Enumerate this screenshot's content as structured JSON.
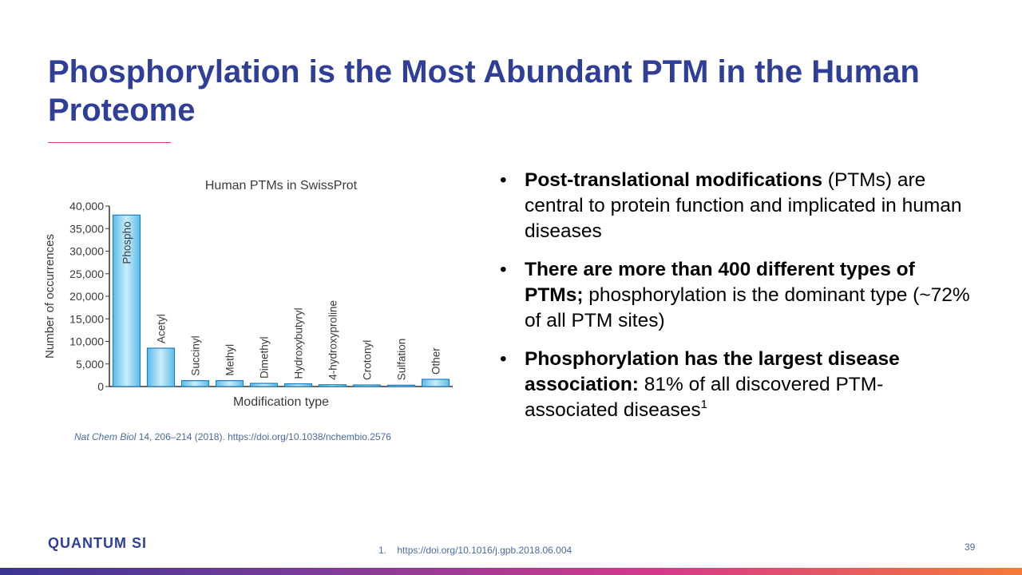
{
  "slide": {
    "title": "Phosphorylation is the Most Abundant PTM in the Human Proteome",
    "page_number": "39",
    "logo_text": "QUANTUM SI",
    "footnote_num": "1.",
    "footnote_text": "https://doi.org/10.1016/j.gpb.2018.06.004",
    "citation_journal": "Nat Chem Biol",
    "citation_rest": " 14, 206–214 (2018). https://doi.org/10.1038/nchembio.2576",
    "colors": {
      "title": "#2f3f98",
      "accent_rule": "#e0357a",
      "bar_fill": "#7fd0f0",
      "bar_stroke": "#1f7fc0"
    }
  },
  "bullets": [
    {
      "bold": "Post-translational modifications",
      "text": " (PTMs) are central to protein function and implicated in human diseases"
    },
    {
      "bold": "There are more than 400 different types of PTMs;",
      "text": " phosphorylation is the dominant type (~72% of all PTM sites)"
    },
    {
      "bold": "Phosphorylation has the largest disease association:",
      "text": " 81% of all discovered PTM-associated diseases",
      "sup": "1"
    }
  ],
  "chart_data": {
    "type": "bar",
    "title": "Human PTMs in SwissProt",
    "xlabel": "Modification type",
    "ylabel": "Number of occurrences",
    "categories": [
      "Phospho",
      "Acetyl",
      "Succinyl",
      "Methyl",
      "Dimethyl",
      "Hydroxybutyryl",
      "4-hydroxyproline",
      "Crotonyl",
      "Sulfation",
      "Other"
    ],
    "values": [
      38000,
      8500,
      1300,
      1300,
      700,
      600,
      400,
      350,
      300,
      1600
    ],
    "ylim": [
      0,
      40000
    ],
    "yticks": [
      0,
      5000,
      10000,
      15000,
      20000,
      25000,
      30000,
      35000,
      40000
    ],
    "ytick_labels": [
      "0",
      "5,000",
      "10,000",
      "15,000",
      "20,000",
      "25,000",
      "30,000",
      "35,000",
      "40,000"
    ],
    "grid": false,
    "legend": "none"
  }
}
